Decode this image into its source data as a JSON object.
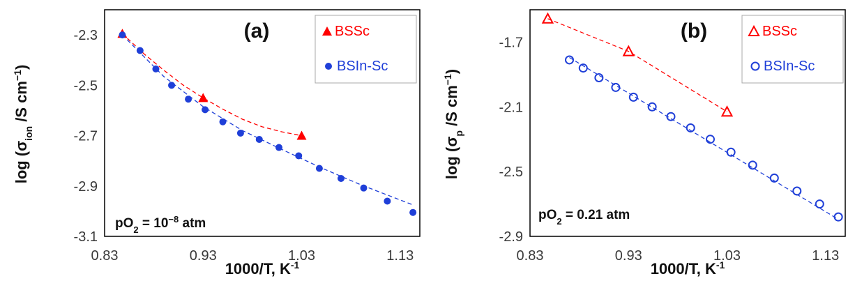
{
  "colors": {
    "bssc": "#ff0000",
    "bsinsc": "#1f3fd8"
  },
  "chart_data": [
    {
      "type": "scatter",
      "panel_label": "(a)",
      "xlabel": "1000/T, K",
      "xlabel_sup": "-1",
      "ylabel_prefix": "log (σ",
      "ylabel_sub": "ion",
      "ylabel_mid": " /S cm",
      "ylabel_sup": "−1",
      "ylabel_suffix": ")",
      "xlim": [
        0.83,
        1.15
      ],
      "ylim": [
        -3.1,
        -2.2
      ],
      "xticks": [
        0.83,
        0.93,
        1.03,
        1.13
      ],
      "xtick_labels": [
        "0.83",
        "0.93",
        "1.03",
        "1.13"
      ],
      "yticks": [
        -2.3,
        -2.5,
        -2.7,
        -2.9,
        -3.1
      ],
      "ytick_labels": [
        "-2.3",
        "-2.5",
        "-2.7",
        "-2.9",
        "-3.1"
      ],
      "annotation": {
        "prefix": "pO",
        "sub": "2",
        "mid": " = 10",
        "sup": "−8",
        "suffix": " atm"
      },
      "legend_position": "top-right",
      "series": [
        {
          "name": "BSSc",
          "marker": "triangle-filled",
          "color": "#ff0000",
          "x": [
            0.848,
            0.93,
            1.03
          ],
          "y": [
            -2.295,
            -2.55,
            -2.7
          ],
          "fit_x": [
            0.848,
            0.87,
            0.89,
            0.91,
            0.93,
            0.95,
            0.97,
            0.99,
            1.01,
            1.03
          ],
          "fit_y": [
            -2.295,
            -2.375,
            -2.44,
            -2.5,
            -2.55,
            -2.595,
            -2.635,
            -2.665,
            -2.685,
            -2.7
          ]
        },
        {
          "name": "BSIn-Sc",
          "marker": "circle-filled",
          "color": "#1f3fd8",
          "x": [
            0.848,
            0.866,
            0.882,
            0.898,
            0.915,
            0.932,
            0.95,
            0.968,
            0.987,
            1.007,
            1.027,
            1.048,
            1.07,
            1.093,
            1.117,
            1.143
          ],
          "y": [
            -2.3,
            -2.362,
            -2.435,
            -2.5,
            -2.555,
            -2.597,
            -2.645,
            -2.69,
            -2.715,
            -2.747,
            -2.78,
            -2.83,
            -2.87,
            -2.908,
            -2.96,
            -3.005
          ],
          "fit_x": [
            0.848,
            0.89,
            0.93,
            0.97,
            1.01,
            1.05,
            1.09,
            1.143
          ],
          "fit_y": [
            -2.3,
            -2.465,
            -2.585,
            -2.68,
            -2.755,
            -2.828,
            -2.895,
            -2.975
          ]
        }
      ]
    },
    {
      "type": "scatter",
      "panel_label": "(b)",
      "xlabel": "1000/T, K",
      "xlabel_sup": "-1",
      "ylabel_prefix": "log (σ",
      "ylabel_sub": "p",
      "ylabel_mid": " /S cm",
      "ylabel_sup": "−1",
      "ylabel_suffix": ")",
      "xlim": [
        0.83,
        1.15
      ],
      "ylim": [
        -2.9,
        -1.5
      ],
      "xticks": [
        0.83,
        0.93,
        1.03,
        1.13
      ],
      "xtick_labels": [
        "0.83",
        "0.93",
        "1.03",
        "1.13"
      ],
      "yticks": [
        -1.7,
        -2.1,
        -2.5,
        -2.9
      ],
      "ytick_labels": [
        "-1.7",
        "-2.1",
        "-2.5",
        "-2.9"
      ],
      "annotation": {
        "prefix": "pO",
        "sub": "2",
        "mid": " = 0.21 atm",
        "sup": "",
        "suffix": ""
      },
      "legend_position": "top-right",
      "series": [
        {
          "name": "BSSc",
          "marker": "triangle-open",
          "color": "#ff0000",
          "x": [
            0.848,
            0.93,
            1.03
          ],
          "y": [
            -1.555,
            -1.757,
            -2.13
          ],
          "fit_x": [
            0.848,
            0.93,
            1.03
          ],
          "fit_y": [
            -1.555,
            -1.757,
            -2.13
          ]
        },
        {
          "name": "BSIn-Sc",
          "marker": "circle-open",
          "color": "#1f3fd8",
          "x": [
            0.87,
            0.884,
            0.9,
            0.917,
            0.935,
            0.954,
            0.973,
            0.993,
            1.013,
            1.034,
            1.056,
            1.078,
            1.101,
            1.124,
            1.143
          ],
          "y": [
            -1.81,
            -1.86,
            -1.92,
            -1.98,
            -2.04,
            -2.1,
            -2.16,
            -2.23,
            -2.3,
            -2.38,
            -2.46,
            -2.54,
            -2.62,
            -2.7,
            -2.78
          ],
          "fit_x": [
            0.87,
            1.143
          ],
          "fit_y": [
            -1.795,
            -2.795
          ]
        }
      ]
    }
  ]
}
